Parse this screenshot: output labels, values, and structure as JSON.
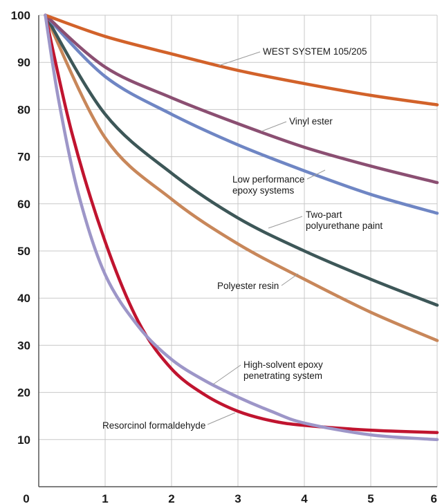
{
  "chart_data": {
    "type": "line",
    "xlim": [
      0,
      6
    ],
    "ylim": [
      0,
      100
    ],
    "x_ticks": [
      "0",
      "1",
      "2",
      "3",
      "4",
      "5",
      "6"
    ],
    "y_ticks": [
      "10",
      "20",
      "30",
      "40",
      "50",
      "60",
      "70",
      "80",
      "90",
      "100"
    ],
    "grid": true,
    "legend": "direct labels with leader lines",
    "series": [
      {
        "name": "WEST SYSTEM 105/205",
        "color": "#d2622a",
        "x": [
          0.1,
          1,
          2,
          3,
          4,
          5,
          6
        ],
        "y": [
          100,
          95.5,
          91.8,
          88.3,
          85.5,
          83,
          81
        ]
      },
      {
        "name": "Vinyl ester",
        "color": "#8b4f72",
        "x": [
          0.1,
          1,
          2,
          3,
          4,
          5,
          6
        ],
        "y": [
          100,
          89,
          82.5,
          77,
          72,
          68,
          64.5
        ]
      },
      {
        "name": "Low performance epoxy systems",
        "color": "#6f86c4",
        "x": [
          0.1,
          1,
          2,
          3,
          4,
          5,
          6
        ],
        "y": [
          100,
          87,
          79,
          72.5,
          67,
          62,
          58
        ]
      },
      {
        "name": "Two-part polyurethane paint",
        "color": "#3d5758",
        "x": [
          0.1,
          1,
          2,
          3,
          4,
          5,
          6
        ],
        "y": [
          100,
          79,
          66.5,
          57,
          50,
          44,
          38.5
        ]
      },
      {
        "name": "Polyester resin",
        "color": "#c8875a",
        "x": [
          0.1,
          1,
          2,
          3,
          4,
          5,
          6
        ],
        "y": [
          100,
          74,
          61,
          51.5,
          44,
          37,
          31
        ]
      },
      {
        "name": "Resorcinol formaldehyde",
        "color": "#c0142f",
        "x": [
          0.1,
          0.5,
          1,
          1.5,
          2,
          2.5,
          3,
          3.5,
          4,
          5,
          6
        ],
        "y": [
          100,
          75,
          52,
          35,
          25,
          19.5,
          16,
          14,
          13,
          12,
          11.5
        ]
      },
      {
        "name": "High-solvent epoxy penetrating system",
        "color": "#9d96c8",
        "x": [
          0.1,
          0.3,
          0.6,
          1,
          1.5,
          2,
          2.5,
          3,
          3.5,
          4,
          5,
          6
        ],
        "y": [
          100,
          82,
          62,
          45,
          34,
          27,
          22.5,
          19,
          16,
          13.5,
          11,
          10
        ]
      }
    ],
    "annotations": [
      {
        "lines": [
          "WEST SYSTEM 105/205"
        ],
        "series": 0
      },
      {
        "lines": [
          "Vinyl ester"
        ],
        "series": 1
      },
      {
        "lines": [
          "Low performance",
          "epoxy systems"
        ],
        "series": 2
      },
      {
        "lines": [
          "Two-part",
          "polyurethane paint"
        ],
        "series": 3
      },
      {
        "lines": [
          "Polyester resin"
        ],
        "series": 4
      },
      {
        "lines": [
          "High-solvent epoxy",
          "penetrating system"
        ],
        "series": 6
      },
      {
        "lines": [
          "Resorcinol formaldehyde"
        ],
        "series": 5
      }
    ]
  }
}
